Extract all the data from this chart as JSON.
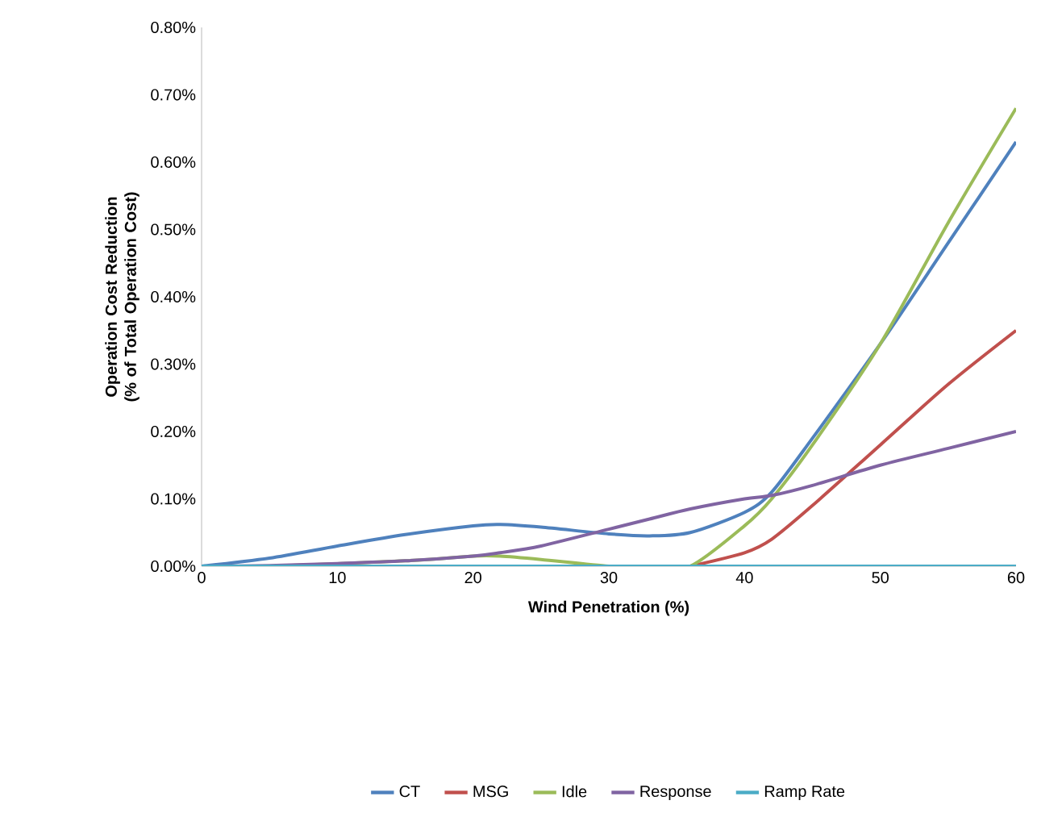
{
  "chart_data": {
    "type": "line",
    "xlabel": "Wind Penetration (%)",
    "ylabel": "Operation Cost Reduction (% of Total Operation Cost)",
    "xlim": [
      0,
      60
    ],
    "ylim": [
      0,
      0.8
    ],
    "xticks": [
      0,
      10,
      20,
      30,
      40,
      50,
      60
    ],
    "yticks": [
      {
        "value": 0,
        "label": "0.00%"
      },
      {
        "value": 0.1,
        "label": "0.10%"
      },
      {
        "value": 0.2,
        "label": "0.20%"
      },
      {
        "value": 0.3,
        "label": "0.30%"
      },
      {
        "value": 0.4,
        "label": "0.40%"
      },
      {
        "value": 0.5,
        "label": "0.50%"
      },
      {
        "value": 0.6,
        "label": "0.60%"
      },
      {
        "value": 0.7,
        "label": "0.70%"
      },
      {
        "value": 0.8,
        "label": "0.80%"
      }
    ],
    "x": [
      0,
      5,
      10,
      15,
      20,
      22,
      25,
      30,
      33,
      36,
      40,
      42,
      45,
      50,
      55,
      60
    ],
    "series": [
      {
        "name": "CT",
        "color": "#4f81bd",
        "values": [
          0,
          0.012,
          0.03,
          0.047,
          0.06,
          0.062,
          0.058,
          0.048,
          0.045,
          0.05,
          0.08,
          0.11,
          0.19,
          0.33,
          0.48,
          0.63
        ]
      },
      {
        "name": "MSG",
        "color": "#c0504d",
        "values": [
          null,
          null,
          null,
          null,
          null,
          null,
          null,
          null,
          null,
          0,
          0.02,
          0.04,
          0.09,
          0.18,
          0.27,
          0.35
        ]
      },
      {
        "name": "Idle",
        "color": "#9bbb59",
        "values": [
          0,
          0,
          null,
          0.008,
          0.015,
          0.015,
          0.01,
          0,
          0,
          0,
          0.06,
          0.1,
          0.18,
          0.33,
          0.51,
          0.68
        ]
      },
      {
        "name": "Response",
        "color": "#8064a2",
        "values": [
          0,
          0.001,
          0.004,
          0.008,
          0.015,
          0.02,
          0.03,
          0.055,
          0.07,
          0.085,
          0.1,
          0.105,
          0.12,
          0.15,
          0.175,
          0.2
        ]
      },
      {
        "name": "Ramp Rate",
        "color": "#4bacc6",
        "values": [
          0,
          0,
          0,
          0,
          0,
          0,
          0,
          0,
          0,
          0,
          0,
          0,
          0,
          0,
          0,
          0
        ]
      }
    ],
    "legend": "bottom",
    "grid": false,
    "marker": "none",
    "line_style": "solid"
  }
}
